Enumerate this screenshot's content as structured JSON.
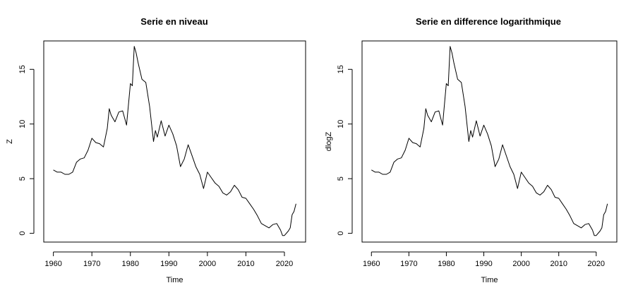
{
  "chart_data": [
    {
      "type": "line",
      "title": "Serie en niveau",
      "xlabel": "Time",
      "ylabel": "Z",
      "xlim": [
        1957.5,
        2025.5
      ],
      "ylim": [
        -0.8,
        17.6
      ],
      "xticks": [
        1960,
        1970,
        1980,
        1990,
        2000,
        2010,
        2020
      ],
      "yticks": [
        0,
        5,
        10,
        15
      ],
      "grid": false,
      "x": [
        1960,
        1961,
        1962,
        1963,
        1964,
        1965,
        1966,
        1967,
        1968,
        1969,
        1970,
        1971,
        1972,
        1973,
        1974,
        1974.5,
        1975,
        1976,
        1977,
        1978,
        1979,
        1980,
        1980.5,
        1981,
        1981.5,
        1982,
        1983,
        1984,
        1985,
        1986,
        1986.5,
        1987,
        1988,
        1989,
        1990,
        1991,
        1992,
        1993,
        1994,
        1995,
        1996,
        1997,
        1998,
        1999,
        2000,
        2001,
        2002,
        2003,
        2004,
        2005,
        2006,
        2007,
        2008,
        2009,
        2010,
        2011,
        2012,
        2013,
        2014,
        2015,
        2016,
        2017,
        2018,
        2019,
        2019.5,
        2020,
        2021,
        2021.5,
        2022,
        2022.5,
        2023
      ],
      "y": [
        5.8,
        5.6,
        5.6,
        5.4,
        5.4,
        5.6,
        6.5,
        6.8,
        6.9,
        7.6,
        8.7,
        8.3,
        8.2,
        7.9,
        9.6,
        11.4,
        10.8,
        10.2,
        11.1,
        11.2,
        9.9,
        13.7,
        13.5,
        17.1,
        16.5,
        15.6,
        14.1,
        13.8,
        11.6,
        8.4,
        9.4,
        8.8,
        10.3,
        8.9,
        9.9,
        9.1,
        8.0,
        6.1,
        6.8,
        8.1,
        7.1,
        6.1,
        5.4,
        4.1,
        5.6,
        5.1,
        4.6,
        4.3,
        3.7,
        3.5,
        3.8,
        4.4,
        4.0,
        3.3,
        3.2,
        2.7,
        2.2,
        1.6,
        0.9,
        0.7,
        0.5,
        0.8,
        0.9,
        0.3,
        -0.2,
        -0.2,
        0.2,
        0.5,
        1.7,
        2.0,
        2.7
      ]
    },
    {
      "type": "line",
      "title": "Serie en difference logarithmique",
      "xlabel": "Time",
      "ylabel": "dlogZ",
      "xlim": [
        1957.5,
        2025.5
      ],
      "ylim": [
        -0.8,
        17.6
      ],
      "xticks": [
        1960,
        1970,
        1980,
        1990,
        2000,
        2010,
        2020
      ],
      "yticks": [
        0,
        5,
        10,
        15
      ],
      "grid": false,
      "x": [
        1960,
        1961,
        1962,
        1963,
        1964,
        1965,
        1966,
        1967,
        1968,
        1969,
        1970,
        1971,
        1972,
        1973,
        1974,
        1974.5,
        1975,
        1976,
        1977,
        1978,
        1979,
        1980,
        1980.5,
        1981,
        1981.5,
        1982,
        1983,
        1984,
        1985,
        1986,
        1986.5,
        1987,
        1988,
        1989,
        1990,
        1991,
        1992,
        1993,
        1994,
        1995,
        1996,
        1997,
        1998,
        1999,
        2000,
        2001,
        2002,
        2003,
        2004,
        2005,
        2006,
        2007,
        2008,
        2009,
        2010,
        2011,
        2012,
        2013,
        2014,
        2015,
        2016,
        2017,
        2018,
        2019,
        2019.5,
        2020,
        2021,
        2021.5,
        2022,
        2022.5,
        2023
      ],
      "y": [
        5.8,
        5.6,
        5.6,
        5.4,
        5.4,
        5.6,
        6.5,
        6.8,
        6.9,
        7.6,
        8.7,
        8.3,
        8.2,
        7.9,
        9.6,
        11.4,
        10.8,
        10.2,
        11.1,
        11.2,
        9.9,
        13.7,
        13.5,
        17.1,
        16.5,
        15.6,
        14.1,
        13.8,
        11.6,
        8.4,
        9.4,
        8.8,
        10.3,
        8.9,
        9.9,
        9.1,
        8.0,
        6.1,
        6.8,
        8.1,
        7.1,
        6.1,
        5.4,
        4.1,
        5.6,
        5.1,
        4.6,
        4.3,
        3.7,
        3.5,
        3.8,
        4.4,
        4.0,
        3.3,
        3.2,
        2.7,
        2.2,
        1.6,
        0.9,
        0.7,
        0.5,
        0.8,
        0.9,
        0.3,
        -0.2,
        -0.2,
        0.2,
        0.5,
        1.7,
        2.0,
        2.7
      ]
    }
  ]
}
